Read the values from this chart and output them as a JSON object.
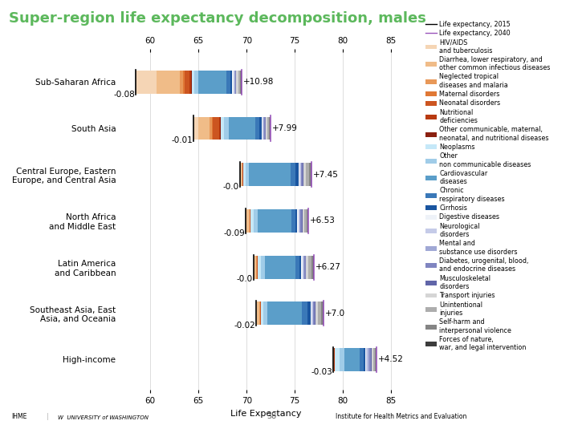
{
  "title": "Super-region life expectancy decomposition, males",
  "title_color": "#5CB85C",
  "xlabel": "Life Expectancy",
  "xlim": [
    57,
    87
  ],
  "xticks": [
    60,
    65,
    70,
    75,
    80,
    85
  ],
  "regions": [
    "Sub-Saharan Africa",
    "South Asia",
    "Central Europe, Eastern\nEurope, and Central Asia",
    "North Africa\nand Middle East",
    "Latin America\nand Caribbean",
    "Southeast Asia, East\nAsia, and Oceania",
    "High-income"
  ],
  "le2015": [
    58.52,
    64.52,
    69.3,
    69.91,
    70.73,
    70.98,
    78.97
  ],
  "le2040": [
    69.5,
    72.51,
    76.75,
    76.44,
    77.0,
    77.98,
    83.49
  ],
  "neg_total": [
    -0.08,
    -0.01,
    0.0,
    -0.09,
    0.0,
    -0.02,
    -0.03
  ],
  "neg_labels": [
    "-0.08",
    "-0.01",
    "-0.0",
    "-0.09",
    "-0.0",
    "-0.02",
    "-0.03"
  ],
  "pos_total": [
    10.98,
    7.99,
    7.45,
    6.53,
    6.27,
    7.0,
    4.52
  ],
  "pos_labels": [
    "+10.98",
    "+7.99",
    "+7.45",
    "+6.53",
    "+6.27",
    "+7.0",
    "+4.52"
  ],
  "causes": [
    "HIV/AIDS\nand tuberculosis",
    "Diarrhea, lower respiratory, and\nother common infectious diseases",
    "Neglected tropical\ndiseases and malaria",
    "Maternal disorders",
    "Neonatal disorders",
    "Nutritional\ndeficiencies",
    "Other communicable, maternal,\nneonatal, and nutritional diseases",
    "Neoplasms",
    "Other\nnon communicable diseases",
    "Cardiovascular\ndiseases",
    "Chronic\nrespiratory diseases",
    "Cirrhosis",
    "Digestive diseases",
    "Neurological\ndisorders",
    "Mental and\nsubstance use disorders",
    "Diabetes, urogenital, blood,\nand endocrine diseases",
    "Musculoskeletal\ndisorders",
    "Transport injuries",
    "Unintentional\ninjuries",
    "Self-harm and\ninterpersonal violence",
    "Forces of nature,\nwar, and legal intervention"
  ],
  "cause_colors": [
    "#F5D5B5",
    "#F0BC88",
    "#E89858",
    "#E07835",
    "#CC5520",
    "#B83A10",
    "#8B2010",
    "#C5E8F8",
    "#A0CCE8",
    "#5B9EC9",
    "#3A78B8",
    "#1A55A0",
    "#EEF2F8",
    "#C5CBE8",
    "#A0A8D5",
    "#8085C0",
    "#6065A8",
    "#D5D5D5",
    "#ADADAD",
    "#858585",
    "#3C3C3C"
  ],
  "segments_per_region": {
    "Sub-Saharan Africa": [
      2.1,
      2.3,
      0.35,
      0.12,
      0.55,
      0.12,
      0.08,
      0.25,
      0.4,
      2.8,
      0.45,
      0.18,
      0.1,
      0.1,
      0.05,
      0.1,
      0.05,
      0.18,
      0.18,
      0.12,
      0.07
    ],
    "South Asia": [
      0.4,
      1.1,
      0.2,
      0.1,
      0.55,
      0.12,
      0.08,
      0.28,
      0.45,
      2.5,
      0.42,
      0.18,
      0.1,
      0.1,
      0.05,
      0.12,
      0.05,
      0.15,
      0.15,
      0.1,
      0.05
    ],
    "Central Europe, Eastern\nEurope, and Central Asia": [
      0.08,
      0.15,
      0.03,
      0.01,
      0.03,
      0.01,
      0.01,
      0.25,
      0.35,
      4.2,
      0.55,
      0.28,
      0.1,
      0.14,
      0.05,
      0.14,
      0.05,
      0.28,
      0.28,
      0.2,
      0.1
    ],
    "North Africa\nand Middle East": [
      0.08,
      0.25,
      0.04,
      0.01,
      0.04,
      0.01,
      0.01,
      0.28,
      0.38,
      3.0,
      0.38,
      0.14,
      0.1,
      0.1,
      0.05,
      0.14,
      0.05,
      0.18,
      0.18,
      0.14,
      0.07
    ],
    "Latin America\nand Caribbean": [
      0.08,
      0.18,
      0.04,
      0.01,
      0.04,
      0.01,
      0.01,
      0.28,
      0.38,
      2.8,
      0.38,
      0.18,
      0.1,
      0.1,
      0.05,
      0.14,
      0.05,
      0.24,
      0.24,
      0.18,
      0.08
    ],
    "Southeast Asia, East\nAsia, and Oceania": [
      0.08,
      0.28,
      0.04,
      0.01,
      0.04,
      0.01,
      0.01,
      0.28,
      0.38,
      3.4,
      0.6,
      0.28,
      0.1,
      0.14,
      0.05,
      0.14,
      0.05,
      0.28,
      0.28,
      0.18,
      0.08
    ],
    "High-income": [
      0.01,
      0.08,
      0.01,
      0.01,
      0.01,
      0.01,
      0.01,
      0.5,
      0.45,
      1.4,
      0.38,
      0.1,
      0.1,
      0.18,
      0.1,
      0.18,
      0.1,
      0.14,
      0.14,
      0.1,
      0.04
    ]
  },
  "background_color": "#FFFFFF",
  "grid_color": "#DDDDDD",
  "bar_height": 0.5,
  "fontsize_ticks": 7.5,
  "fontsize_labels": 8,
  "fontsize_title": 13,
  "fontsize_legend": 5.8,
  "footer_green": "#5CB85C"
}
